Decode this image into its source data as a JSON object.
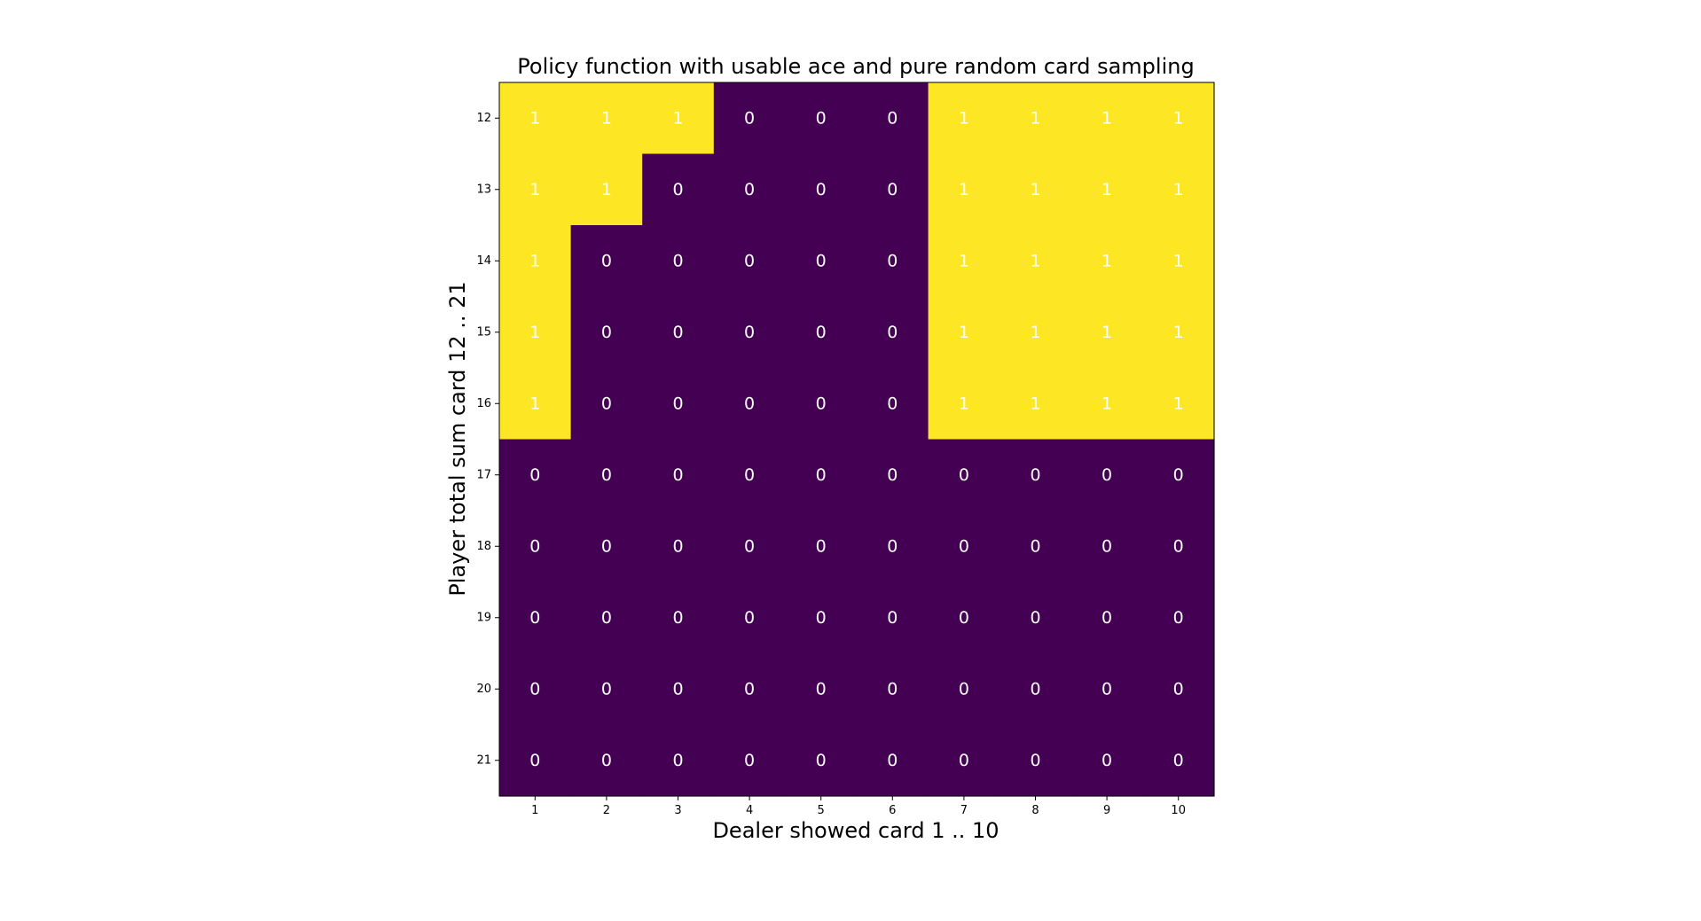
{
  "chart_data": {
    "type": "heatmap",
    "title": "Policy function with usable ace and pure random card sampling",
    "xlabel": "Dealer showed card 1 .. 10",
    "ylabel": "Player total sum card 12 .. 21",
    "x_categories": [
      "1",
      "2",
      "3",
      "4",
      "5",
      "6",
      "7",
      "8",
      "9",
      "10"
    ],
    "y_categories": [
      "12",
      "13",
      "14",
      "15",
      "16",
      "17",
      "18",
      "19",
      "20",
      "21"
    ],
    "values": [
      [
        1,
        1,
        1,
        0,
        0,
        0,
        1,
        1,
        1,
        1
      ],
      [
        1,
        1,
        0,
        0,
        0,
        0,
        1,
        1,
        1,
        1
      ],
      [
        1,
        0,
        0,
        0,
        0,
        0,
        1,
        1,
        1,
        1
      ],
      [
        1,
        0,
        0,
        0,
        0,
        0,
        1,
        1,
        1,
        1
      ],
      [
        1,
        0,
        0,
        0,
        0,
        0,
        1,
        1,
        1,
        1
      ],
      [
        0,
        0,
        0,
        0,
        0,
        0,
        0,
        0,
        0,
        0
      ],
      [
        0,
        0,
        0,
        0,
        0,
        0,
        0,
        0,
        0,
        0
      ],
      [
        0,
        0,
        0,
        0,
        0,
        0,
        0,
        0,
        0,
        0
      ],
      [
        0,
        0,
        0,
        0,
        0,
        0,
        0,
        0,
        0,
        0
      ],
      [
        0,
        0,
        0,
        0,
        0,
        0,
        0,
        0,
        0,
        0
      ]
    ],
    "colormap": {
      "0": "#440154",
      "1": "#fde725"
    },
    "cell_text_color": "#ffffff",
    "grid": false,
    "legend": "none"
  }
}
